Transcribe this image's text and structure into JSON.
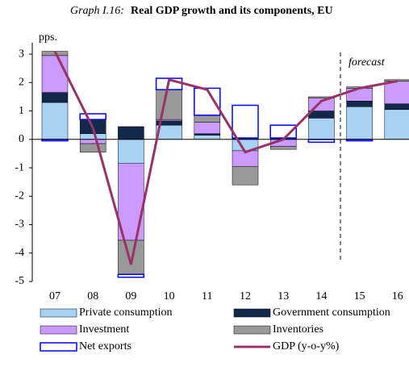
{
  "chart_data": {
    "type": "bar",
    "title_prefix": "Graph I.16:",
    "title": "Real GDP growth and its components, EU",
    "y_unit": "pps.",
    "annotation": "forecast",
    "categories": [
      "07",
      "08",
      "09",
      "10",
      "11",
      "12",
      "13",
      "14",
      "15",
      "16"
    ],
    "forecast_from": 8,
    "series": [
      {
        "name": "Private consumption",
        "color": "#a6d3f5",
        "values": [
          1.3,
          0.2,
          -0.85,
          0.5,
          0.15,
          -0.4,
          0.0,
          0.75,
          1.15,
          1.05
        ]
      },
      {
        "name": "Government consumption",
        "color": "#13294b",
        "values": [
          0.35,
          0.5,
          0.45,
          0.15,
          0.05,
          0.05,
          0.05,
          0.25,
          0.2,
          0.2
        ]
      },
      {
        "name": "Investment",
        "color": "#cc99ff",
        "values": [
          1.3,
          -0.15,
          -2.7,
          0.05,
          0.4,
          -0.55,
          -0.25,
          0.45,
          0.45,
          0.8
        ]
      },
      {
        "name": "Inventories",
        "color": "#999999",
        "values": [
          0.15,
          -0.3,
          -1.2,
          1.05,
          0.25,
          -0.65,
          -0.1,
          0.05,
          0.05,
          0.05
        ]
      },
      {
        "name": "Net exports",
        "color": "#0000ff",
        "outline": true,
        "values": [
          -0.05,
          0.2,
          -0.1,
          0.4,
          0.95,
          1.15,
          0.45,
          -0.1,
          -0.05,
          0.0
        ]
      }
    ],
    "line": {
      "name": "GDP (y-o-y%)",
      "color": "#993366",
      "values": [
        3.1,
        0.4,
        -4.4,
        2.1,
        1.75,
        -0.45,
        0.0,
        1.35,
        1.8,
        2.05
      ]
    },
    "ylim": [
      -5,
      3.4
    ],
    "yticks": [
      3,
      2,
      1,
      0,
      -1,
      -2,
      -3,
      -4,
      -5
    ]
  }
}
